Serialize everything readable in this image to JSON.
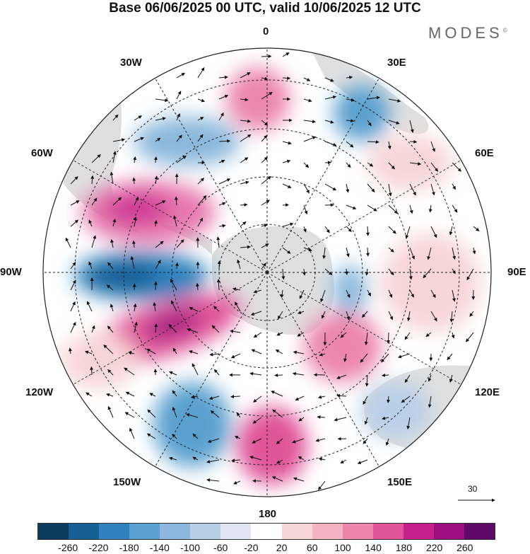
{
  "title": "Base 06/06/2025 00 UTC, valid 10/06/2025 12 UTC",
  "brand": "MODES",
  "brand_mark": "©",
  "lon_labels": {
    "top": "0",
    "top_left": "30W",
    "top_right": "30E",
    "upper_left": "60W",
    "upper_right": "60E",
    "left": "90W",
    "right": "90E",
    "lower_left": "120W",
    "lower_right": "120E",
    "bottom_left": "150W",
    "bottom_right": "150E",
    "bottom": "180"
  },
  "reference_vector": "30",
  "colorbar": {
    "ticks": [
      "-260",
      "-220",
      "-180",
      "-140",
      "-100",
      "-60",
      "-20",
      "20",
      "60",
      "100",
      "140",
      "180",
      "220",
      "260"
    ],
    "colors": [
      "#0b3a5c",
      "#175f95",
      "#2f82bd",
      "#5aa0cf",
      "#8bb8dc",
      "#b9cfe8",
      "#dfe5f3",
      "#ffffff",
      "#f8d6d8",
      "#f3b3c1",
      "#ec86ad",
      "#e0559a",
      "#c5208b",
      "#9c0e7e",
      "#5e0868"
    ]
  },
  "colors": {
    "land": "#d9d9d9",
    "grid": "#222222",
    "arrow": "#111111"
  }
}
